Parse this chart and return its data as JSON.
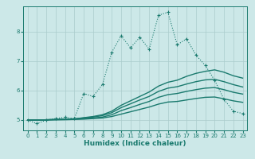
{
  "xlabel": "Humidex (Indice chaleur)",
  "bg_color": "#cce8e8",
  "grid_color": "#aacccc",
  "line_color": "#1a7a6e",
  "xlim": [
    -0.5,
    23.5
  ],
  "ylim": [
    4.65,
    8.85
  ],
  "xticks": [
    0,
    1,
    2,
    3,
    4,
    5,
    6,
    7,
    8,
    9,
    10,
    11,
    12,
    13,
    14,
    15,
    16,
    17,
    18,
    19,
    20,
    21,
    22,
    23
  ],
  "yticks": [
    5,
    6,
    7,
    8
  ],
  "series": [
    {
      "x": [
        0,
        1,
        2,
        3,
        4,
        5,
        6,
        7,
        8,
        9,
        10,
        11,
        12,
        13,
        14,
        15,
        16,
        17,
        18,
        19,
        20,
        21,
        22,
        23
      ],
      "y": [
        5.0,
        4.88,
        5.0,
        5.05,
        5.1,
        5.05,
        5.9,
        5.8,
        6.2,
        7.3,
        7.85,
        7.45,
        7.8,
        7.4,
        8.55,
        8.65,
        7.55,
        7.75,
        7.2,
        6.85,
        6.35,
        5.7,
        5.3,
        5.22
      ],
      "style": "dotted",
      "marker": "+",
      "markersize": 3.5,
      "lw": 0.8
    },
    {
      "x": [
        0,
        1,
        2,
        3,
        4,
        5,
        6,
        7,
        8,
        9,
        10,
        11,
        12,
        13,
        14,
        15,
        16,
        17,
        18,
        19,
        20,
        21,
        22,
        23
      ],
      "y": [
        5.0,
        5.0,
        5.01,
        5.02,
        5.03,
        5.04,
        5.08,
        5.12,
        5.18,
        5.3,
        5.5,
        5.65,
        5.8,
        5.95,
        6.15,
        6.28,
        6.35,
        6.48,
        6.58,
        6.65,
        6.7,
        6.62,
        6.5,
        6.42
      ],
      "style": "solid",
      "marker": null,
      "markersize": 0,
      "lw": 1.0
    },
    {
      "x": [
        0,
        1,
        2,
        3,
        4,
        5,
        6,
        7,
        8,
        9,
        10,
        11,
        12,
        13,
        14,
        15,
        16,
        17,
        18,
        19,
        20,
        21,
        22,
        23
      ],
      "y": [
        5.0,
        5.0,
        5.01,
        5.02,
        5.03,
        5.04,
        5.07,
        5.1,
        5.15,
        5.25,
        5.42,
        5.55,
        5.68,
        5.8,
        5.97,
        6.08,
        6.13,
        6.22,
        6.3,
        6.36,
        6.38,
        6.3,
        6.2,
        6.12
      ],
      "style": "solid",
      "marker": null,
      "markersize": 0,
      "lw": 1.0
    },
    {
      "x": [
        0,
        1,
        2,
        3,
        4,
        5,
        6,
        7,
        8,
        9,
        10,
        11,
        12,
        13,
        14,
        15,
        16,
        17,
        18,
        19,
        20,
        21,
        22,
        23
      ],
      "y": [
        5.0,
        5.0,
        5.01,
        5.01,
        5.02,
        5.03,
        5.05,
        5.07,
        5.1,
        5.18,
        5.32,
        5.42,
        5.53,
        5.63,
        5.77,
        5.86,
        5.9,
        5.97,
        6.03,
        6.08,
        6.1,
        6.03,
        5.94,
        5.88
      ],
      "style": "solid",
      "marker": null,
      "markersize": 0,
      "lw": 1.0
    },
    {
      "x": [
        0,
        1,
        2,
        3,
        4,
        5,
        6,
        7,
        8,
        9,
        10,
        11,
        12,
        13,
        14,
        15,
        16,
        17,
        18,
        19,
        20,
        21,
        22,
        23
      ],
      "y": [
        5.0,
        5.0,
        5.0,
        5.01,
        5.01,
        5.02,
        5.03,
        5.05,
        5.07,
        5.12,
        5.2,
        5.28,
        5.36,
        5.44,
        5.54,
        5.61,
        5.63,
        5.68,
        5.73,
        5.77,
        5.78,
        5.72,
        5.65,
        5.6
      ],
      "style": "solid",
      "marker": null,
      "markersize": 0,
      "lw": 1.0
    }
  ],
  "xlabel_fontsize": 6.5,
  "tick_fontsize": 5.0
}
